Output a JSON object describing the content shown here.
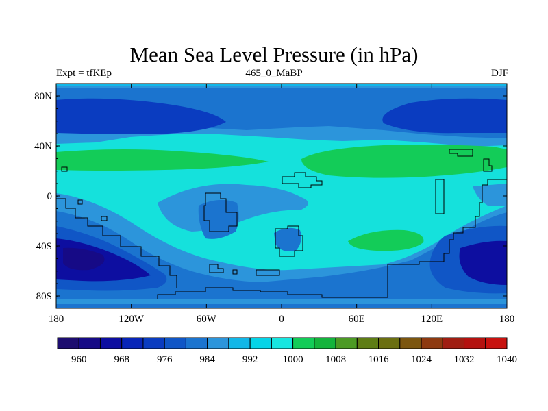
{
  "title": "Mean Sea Level Pressure (in hPa)",
  "subtitle_left": "Expt = tfKEp",
  "subtitle_center": "465_0_MaBP",
  "subtitle_right": "DJF",
  "chart_data": {
    "type": "heatmap",
    "x_ticks": [
      "180",
      "120W",
      "60W",
      "0",
      "60E",
      "120E",
      "180"
    ],
    "y_ticks": [
      "80N",
      "40N",
      "0",
      "40S",
      "80S"
    ],
    "colorbar": {
      "labels": [
        "960",
        "968",
        "976",
        "984",
        "992",
        "1000",
        "1008",
        "1016",
        "1024",
        "1032",
        "1040"
      ],
      "colors": [
        "#1d0d70",
        "#160a86",
        "#0d0ea0",
        "#0825b8",
        "#0a3cc0",
        "#1056c6",
        "#1b74cf",
        "#2c95db",
        "#12b7e8",
        "#05d4e8",
        "#17e6e0",
        "#13cc58",
        "#14b43c",
        "#4c9a24",
        "#5e7d14",
        "#6b6f10",
        "#7c560f",
        "#8e3a10",
        "#a01e12",
        "#b4120f",
        "#c8120f"
      ]
    }
  }
}
